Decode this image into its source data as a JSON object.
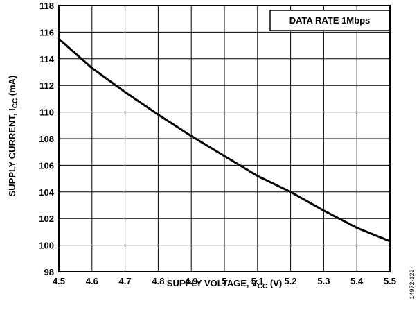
{
  "chart_data": {
    "type": "line",
    "x_ticks": [
      "4.5",
      "4.6",
      "4.7",
      "4.8",
      "4.9",
      "5",
      "5.1",
      "5.2",
      "5.3",
      "5.4",
      "5.5"
    ],
    "y_ticks": [
      "98",
      "100",
      "102",
      "104",
      "106",
      "108",
      "110",
      "112",
      "114",
      "116",
      "118"
    ],
    "xlim": [
      4.5,
      5.5
    ],
    "ylim": [
      98,
      118
    ],
    "grid": true,
    "xlabel": {
      "main": "SUPPLY VOLTAGE, V",
      "sub": "CC",
      "suffix": " (V)"
    },
    "ylabel": {
      "main": "SUPPLY CURRENT, I",
      "sub": "CC",
      "suffix": " (mA)"
    },
    "annotation": "DATA RATE 1Mbps",
    "series": [
      {
        "x": [
          4.5,
          4.6,
          4.7,
          4.8,
          4.9,
          5.0,
          5.1,
          5.2,
          5.3,
          5.4,
          5.5
        ],
        "y": [
          115.5,
          113.3,
          111.5,
          109.8,
          108.2,
          106.7,
          105.2,
          104.0,
          102.6,
          101.3,
          100.3
        ]
      }
    ],
    "figure_id": "14972-122"
  }
}
